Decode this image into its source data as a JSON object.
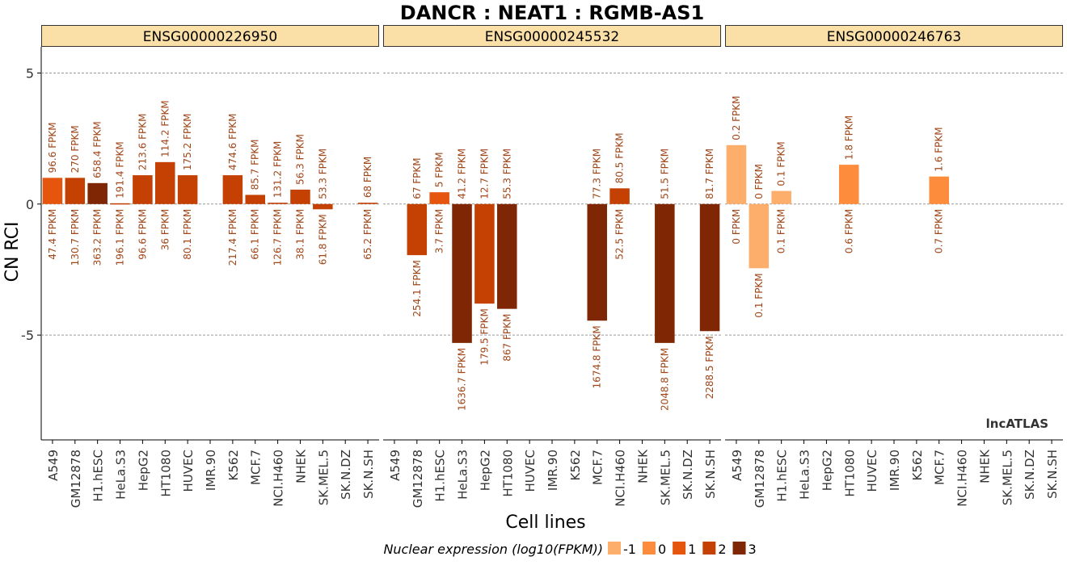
{
  "chart_data": {
    "type": "bar",
    "title": "DANCR : NEAT1 : RGMB-AS1",
    "xlabel": "Cell lines",
    "ylabel": "CN RCI",
    "ylim": [
      -9,
      6
    ],
    "yticks": [
      5,
      0,
      -5
    ],
    "grid": "horizontal dashed at y ticks",
    "watermark": "lncATLAS",
    "categories": [
      "A549",
      "GM12878",
      "H1.hESC",
      "HeLa.S3",
      "HepG2",
      "HT1080",
      "HUVEC",
      "IMR.90",
      "K562",
      "MCF.7",
      "NCI.H460",
      "NHEK",
      "SK.MEL.5",
      "SK.N.DZ",
      "SK.N.SH"
    ],
    "legend": {
      "title": "Nuclear expression (log10(FPKM))",
      "position": "bottom",
      "items": [
        {
          "label": "-1",
          "color": "#FDAE6B"
        },
        {
          "label": "0",
          "color": "#FD8D3C"
        },
        {
          "label": "1",
          "color": "#E6550D"
        },
        {
          "label": "2",
          "color": "#C44103"
        },
        {
          "label": "3",
          "color": "#7F2704"
        }
      ]
    },
    "panels": [
      {
        "gene_id": "ENSG00000226950",
        "bars": [
          {
            "cell": "A549",
            "value": 1.0,
            "level": 1,
            "top": "96.6 FPKM",
            "bottom": "47.4 FPKM"
          },
          {
            "cell": "GM12878",
            "value": 1.0,
            "level": 2,
            "top": "270 FPKM",
            "bottom": "130.7 FPKM"
          },
          {
            "cell": "H1.hESC",
            "value": 0.8,
            "level": 3,
            "top": "658.4 FPKM",
            "bottom": "363.2 FPKM"
          },
          {
            "cell": "HeLa.S3",
            "value": 0.03,
            "level": 2,
            "top": "191.4 FPKM",
            "bottom": "196.1 FPKM"
          },
          {
            "cell": "HepG2",
            "value": 1.1,
            "level": 2,
            "top": "213.6 FPKM",
            "bottom": "96.6 FPKM"
          },
          {
            "cell": "HT1080",
            "value": 1.6,
            "level": 2,
            "top": "114.2 FPKM",
            "bottom": "36 FPKM"
          },
          {
            "cell": "HUVEC",
            "value": 1.1,
            "level": 2,
            "top": "175.2 FPKM",
            "bottom": "80.1 FPKM"
          },
          {
            "cell": "K562",
            "value": 1.1,
            "level": 2,
            "top": "474.6 FPKM",
            "bottom": "217.4 FPKM"
          },
          {
            "cell": "MCF.7",
            "value": 0.35,
            "level": 2,
            "top": "85.7 FPKM",
            "bottom": "66.1 FPKM"
          },
          {
            "cell": "NCI.H460",
            "value": 0.05,
            "level": 2,
            "top": "131.2 FPKM",
            "bottom": "126.7 FPKM"
          },
          {
            "cell": "NHEK",
            "value": 0.55,
            "level": 2,
            "top": "56.3 FPKM",
            "bottom": "38.1 FPKM"
          },
          {
            "cell": "SK.MEL.5",
            "value": -0.2,
            "level": 2,
            "top": "53.3 FPKM",
            "bottom": "61.8 FPKM"
          },
          {
            "cell": "SK.N.SH",
            "value": 0.05,
            "level": 2,
            "top": "68 FPKM",
            "bottom": "65.2 FPKM"
          }
        ]
      },
      {
        "gene_id": "ENSG00000245532",
        "bars": [
          {
            "cell": "GM12878",
            "value": -1.95,
            "level": 2,
            "top": "67 FPKM",
            "bottom": "254.1 FPKM"
          },
          {
            "cell": "H1.hESC",
            "value": 0.45,
            "level": 1,
            "top": "5 FPKM",
            "bottom": "3.7 FPKM"
          },
          {
            "cell": "HeLa.S3",
            "value": -5.3,
            "level": 3,
            "top": "41.2 FPKM",
            "bottom": "1636.7 FPKM"
          },
          {
            "cell": "HepG2",
            "value": -3.8,
            "level": 2,
            "top": "12.7 FPKM",
            "bottom": "179.5 FPKM"
          },
          {
            "cell": "HT1080",
            "value": -4.0,
            "level": 3,
            "top": "55.3 FPKM",
            "bottom": "867 FPKM"
          },
          {
            "cell": "MCF.7",
            "value": -4.45,
            "level": 3,
            "top": "77.3 FPKM",
            "bottom": "1674.8 FPKM"
          },
          {
            "cell": "NCI.H460",
            "value": 0.6,
            "level": 2,
            "top": "80.5 FPKM",
            "bottom": "52.5 FPKM"
          },
          {
            "cell": "SK.MEL.5",
            "value": -5.3,
            "level": 3,
            "top": "51.5 FPKM",
            "bottom": "2048.8 FPKM"
          },
          {
            "cell": "SK.N.SH",
            "value": -4.85,
            "level": 3,
            "top": "81.7 FPKM",
            "bottom": "2288.5 FPKM"
          }
        ]
      },
      {
        "gene_id": "ENSG00000246763",
        "bars": [
          {
            "cell": "A549",
            "value": 2.25,
            "level": -1,
            "top": "0.2 FPKM",
            "bottom": "0 FPKM"
          },
          {
            "cell": "GM12878",
            "value": -2.45,
            "level": -1,
            "top": "0 FPKM",
            "bottom": "0.1 FPKM"
          },
          {
            "cell": "H1.hESC",
            "value": 0.5,
            "level": -1,
            "top": "0.1 FPKM",
            "bottom": "0.1 FPKM"
          },
          {
            "cell": "HT1080",
            "value": 1.5,
            "level": 0,
            "top": "1.8 FPKM",
            "bottom": "0.6 FPKM"
          },
          {
            "cell": "MCF.7",
            "value": 1.05,
            "level": 0,
            "top": "1.6 FPKM",
            "bottom": "0.7 FPKM"
          }
        ]
      }
    ]
  }
}
